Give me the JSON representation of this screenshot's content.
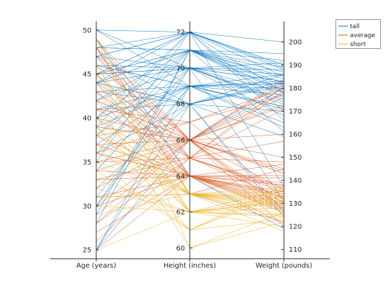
{
  "chart_data": {
    "type": "parallel-coordinates",
    "title": "",
    "axes": [
      {
        "label": "Age (years)",
        "range": [
          24,
          51
        ],
        "ticks": [
          25,
          30,
          35,
          40,
          45,
          50
        ],
        "tick_side": "left"
      },
      {
        "label": "Height (inches)",
        "range": [
          59.4,
          72.6
        ],
        "ticks": [
          60,
          62,
          64,
          66,
          68,
          70,
          72
        ],
        "tick_side": "left"
      },
      {
        "label": "Weight (pounds)",
        "range": [
          106,
          209
        ],
        "ticks": [
          110,
          120,
          130,
          140,
          150,
          160,
          170,
          180,
          190,
          200
        ],
        "tick_side": "right"
      }
    ],
    "legend": {
      "placement": "top-right",
      "entries": [
        "tall",
        "average",
        "short"
      ]
    },
    "series": [
      {
        "name": "tall",
        "color": "#0072BD",
        "lines": [
          [
            38,
            71,
            176
          ],
          [
            40,
            69,
            163
          ],
          [
            49,
            64,
            119
          ],
          [
            25,
            66,
            180
          ],
          [
            46,
            69,
            172
          ],
          [
            42,
            70,
            175
          ],
          [
            25,
            68,
            183
          ],
          [
            39,
            72,
            178
          ],
          [
            45,
            70,
            188
          ],
          [
            44,
            68,
            182
          ],
          [
            28,
            71,
            195
          ],
          [
            30,
            69,
            186
          ],
          [
            34,
            70,
            173
          ],
          [
            44,
            71,
            182
          ],
          [
            41,
            69,
            182
          ],
          [
            42,
            71,
            184
          ],
          [
            45,
            71,
            187
          ],
          [
            44,
            68,
            181
          ],
          [
            47,
            70,
            183
          ],
          [
            45,
            71,
            179
          ],
          [
            44,
            72,
            185
          ],
          [
            38,
            70,
            131
          ],
          [
            48,
            72,
            189
          ],
          [
            46,
            69,
            177
          ],
          [
            50,
            72,
            200
          ],
          [
            30,
            70,
            178
          ],
          [
            45,
            72,
            190
          ],
          [
            50,
            69,
            171
          ],
          [
            35,
            72,
            137
          ],
          [
            37,
            69,
            165
          ],
          [
            40,
            71,
            192
          ],
          [
            25,
            69,
            180
          ],
          [
            44,
            70,
            183
          ],
          [
            47,
            68,
            124
          ],
          [
            48,
            71,
            161
          ],
          [
            50,
            70,
            168
          ],
          [
            32,
            68,
            170
          ],
          [
            39,
            69,
            182
          ],
          [
            45,
            72,
            188
          ],
          [
            31,
            69,
            183
          ],
          [
            36,
            71,
            181
          ],
          [
            40,
            72,
            170
          ],
          [
            29,
            71,
            189
          ],
          [
            41,
            68,
            186
          ],
          [
            43,
            69,
            172
          ],
          [
            48,
            71,
            185
          ],
          [
            47,
            72,
            166
          ],
          [
            46,
            70,
            191
          ],
          [
            36,
            68,
            126
          ],
          [
            45,
            70,
            186
          ],
          [
            43,
            68,
            159
          ],
          [
            47,
            72,
            190
          ],
          [
            44,
            71,
            178
          ],
          [
            34,
            70,
            174
          ]
        ]
      },
      {
        "name": "average",
        "color": "#D95319",
        "lines": [
          [
            49,
            66,
            145
          ],
          [
            38,
            64,
            142
          ],
          [
            42,
            66,
            128
          ],
          [
            33,
            64,
            139
          ],
          [
            47,
            65,
            137
          ],
          [
            40,
            64,
            135
          ],
          [
            32,
            66,
            150
          ],
          [
            46,
            66,
            144
          ],
          [
            43,
            64,
            126
          ],
          [
            48,
            66,
            130
          ],
          [
            36,
            67,
            180
          ],
          [
            28,
            65,
            157
          ],
          [
            31,
            63,
            145
          ],
          [
            37,
            66,
            160
          ],
          [
            44,
            66,
            143
          ],
          [
            48,
            64,
            131
          ],
          [
            41,
            67,
            177
          ],
          [
            35,
            65,
            135
          ],
          [
            34,
            64,
            134
          ],
          [
            29,
            66,
            182
          ],
          [
            25,
            64,
            141
          ],
          [
            42,
            66,
            127
          ],
          [
            49,
            65,
            171
          ],
          [
            45,
            64,
            129
          ],
          [
            38,
            67,
            132
          ],
          [
            48,
            63,
            122
          ],
          [
            39,
            66,
            173
          ],
          [
            30,
            64,
            147
          ],
          [
            47,
            66,
            120
          ],
          [
            41,
            65,
            136
          ],
          [
            44,
            64,
            133
          ],
          [
            35,
            66,
            176
          ],
          [
            36,
            64,
            130
          ],
          [
            48,
            66,
            184
          ],
          [
            33,
            65,
            179
          ],
          [
            27,
            64,
            134
          ],
          [
            46,
            66,
            125
          ],
          [
            28,
            66,
            143
          ],
          [
            37,
            64,
            138
          ],
          [
            40,
            66,
            183
          ],
          [
            45,
            65,
            132
          ],
          [
            31,
            64,
            121
          ],
          [
            34,
            66,
            178
          ],
          [
            48,
            64,
            128
          ],
          [
            39,
            66,
            136
          ],
          [
            43,
            65,
            181
          ],
          [
            36,
            64,
            133
          ],
          [
            30,
            66,
            172
          ],
          [
            42,
            64,
            127
          ],
          [
            26,
            65,
            148
          ]
        ]
      },
      {
        "name": "short",
        "color": "#EDB120",
        "lines": [
          [
            38,
            63,
            131
          ],
          [
            40,
            62,
            130
          ],
          [
            29,
            63,
            133
          ],
          [
            49,
            60,
            122
          ],
          [
            25,
            62,
            136
          ],
          [
            39,
            63,
            128
          ],
          [
            41,
            62,
            125
          ],
          [
            37,
            61,
            134
          ],
          [
            44,
            63,
            118
          ],
          [
            46,
            62,
            124
          ],
          [
            36,
            63,
            132
          ],
          [
            42,
            60,
            126
          ],
          [
            35,
            61,
            136
          ],
          [
            39,
            62,
            120
          ],
          [
            31,
            63,
            129
          ],
          [
            37,
            63,
            127
          ],
          [
            33,
            62,
            131
          ],
          [
            49,
            63,
            133
          ],
          [
            34,
            61,
            123
          ],
          [
            40,
            63,
            137
          ],
          [
            45,
            62,
            128
          ],
          [
            38,
            63,
            125
          ],
          [
            30,
            62,
            133
          ],
          [
            40,
            64,
            132
          ],
          [
            44,
            63,
            135
          ],
          [
            32,
            62,
            125
          ],
          [
            46,
            63,
            130
          ],
          [
            39,
            61,
            138
          ],
          [
            35,
            63,
            124
          ],
          [
            43,
            62,
            131
          ]
        ]
      }
    ]
  }
}
